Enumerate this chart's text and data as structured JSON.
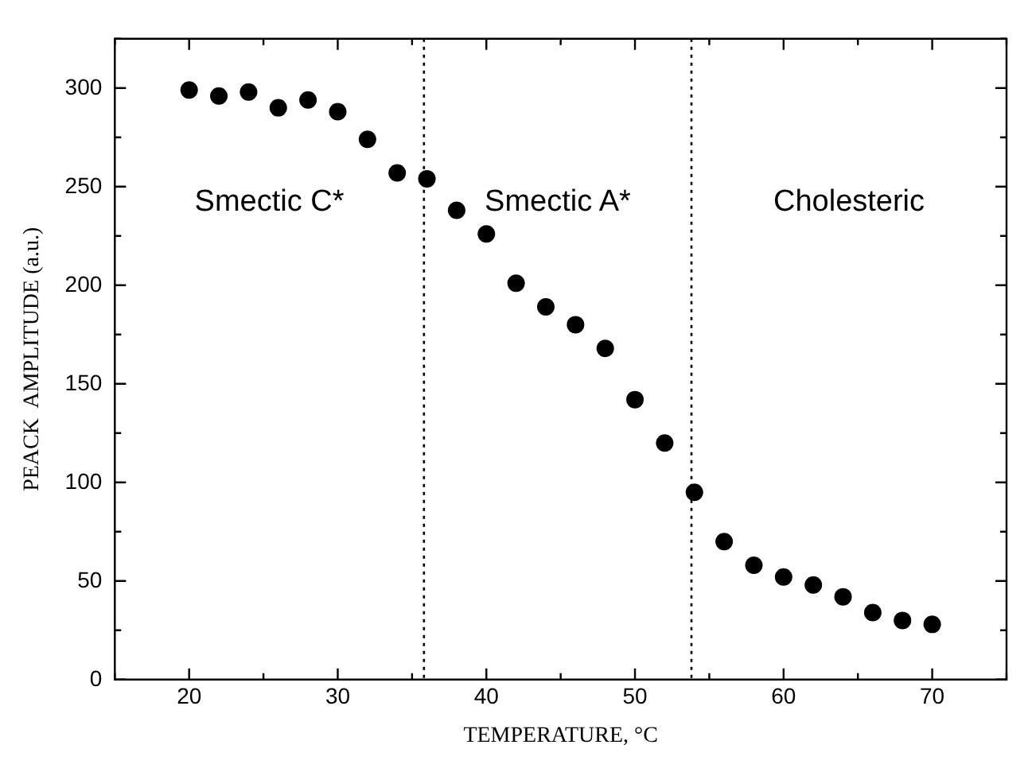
{
  "chart_data": {
    "type": "scatter",
    "xlabel": "TEMPERATURE, °C",
    "ylabel": "PEACK  AMPLITUDE (a.u.)",
    "x": [
      20,
      22,
      24,
      26,
      28,
      30,
      32,
      34,
      36,
      38,
      40,
      42,
      44,
      46,
      48,
      50,
      52,
      54,
      56,
      58,
      60,
      62,
      64,
      66,
      68,
      70
    ],
    "series": [
      {
        "color": "#000000",
        "values": [
          299,
          296,
          298,
          290,
          294,
          288,
          274,
          257,
          254,
          238,
          226,
          201,
          189,
          180,
          168,
          142,
          120,
          95,
          70,
          58,
          52,
          48,
          42,
          34,
          30,
          28
        ]
      }
    ],
    "xlim": [
      15,
      75
    ],
    "xticks": [
      20,
      30,
      40,
      50,
      60,
      70
    ],
    "ylim": [
      0,
      325
    ],
    "yticks": [
      0,
      50,
      100,
      150,
      200,
      250,
      300
    ],
    "marker": "circle",
    "grid": false,
    "legend": false,
    "ref_lines": [
      {
        "axis": "x",
        "value": 35.8,
        "color": "#000000",
        "line_style": "dotted"
      },
      {
        "axis": "x",
        "value": 53.8,
        "color": "#000000",
        "line_style": "dotted"
      }
    ],
    "annotations": [
      "Smectic C*",
      "Smectic A*",
      "Cholesteric"
    ]
  }
}
